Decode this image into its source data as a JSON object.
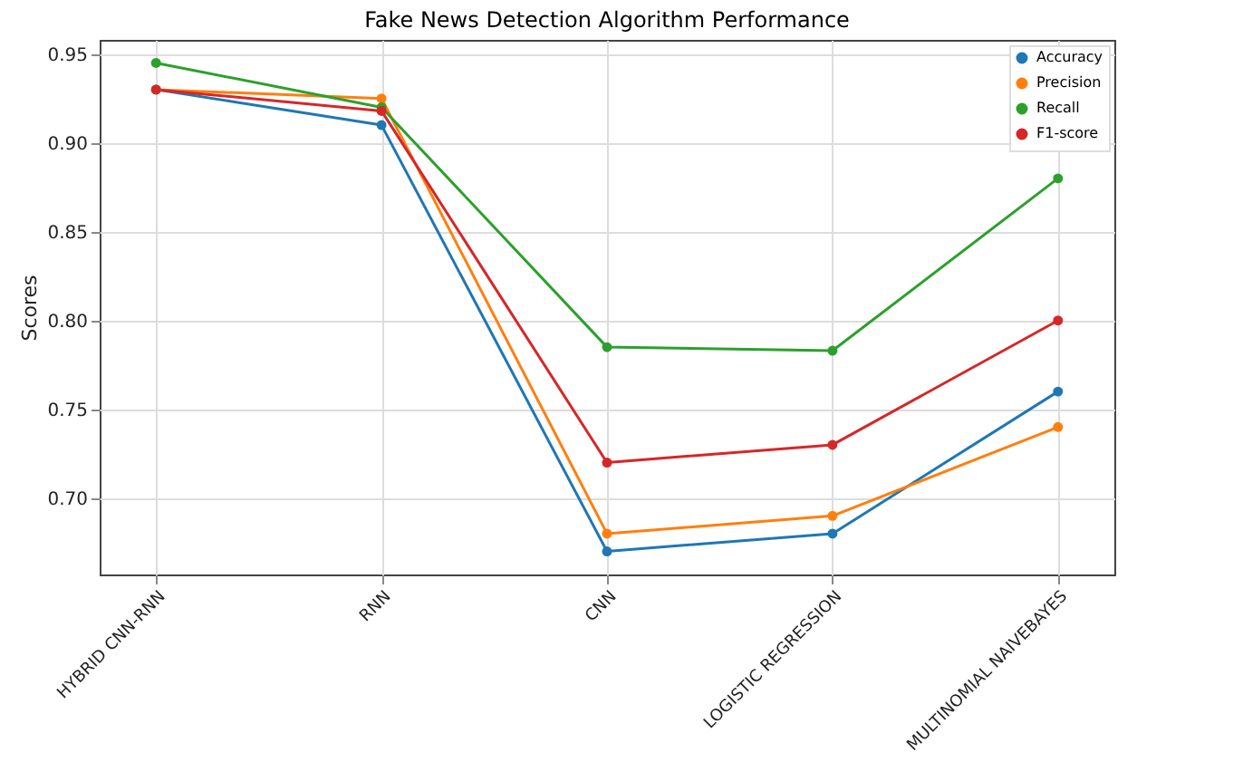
{
  "chart_data": {
    "type": "line",
    "title": "Fake News Detection Algorithm Performance",
    "ylabel": "Scores",
    "categories": [
      "HYBRID CNN-RNN",
      "RNN",
      "CNN",
      "LOGISTIC REGRESSION",
      "MULTINOMIAL NAIVEBAYES"
    ],
    "series": [
      {
        "name": "Accuracy",
        "color": "#1f77b4",
        "values": [
          0.93,
          0.91,
          0.67,
          0.68,
          0.76
        ]
      },
      {
        "name": "Precision",
        "color": "#ff7f0e",
        "values": [
          0.93,
          0.925,
          0.68,
          0.69,
          0.74
        ]
      },
      {
        "name": "Recall",
        "color": "#2ca02c",
        "values": [
          0.945,
          0.92,
          0.785,
          0.783,
          0.88
        ]
      },
      {
        "name": "F1-score",
        "color": "#d62728",
        "values": [
          0.93,
          0.918,
          0.72,
          0.73,
          0.8
        ]
      }
    ],
    "ylim": [
      0.657,
      0.958
    ],
    "yticks": [
      {
        "value": 0.7,
        "label": "0.70"
      },
      0.75,
      {
        "value": 0.8,
        "label": "0.80"
      },
      0.85,
      {
        "value": 0.9,
        "label": "0.90"
      },
      0.95
    ],
    "grid": true,
    "legend": "top right",
    "marker": "circle"
  }
}
